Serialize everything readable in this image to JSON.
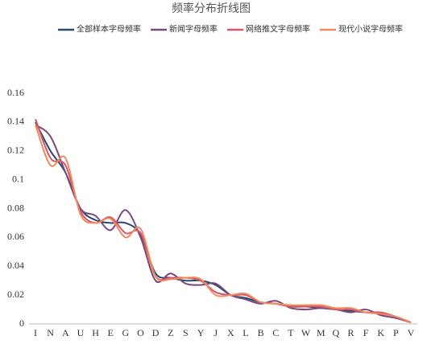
{
  "chart_data": {
    "type": "line",
    "title": "频率分布折线图",
    "categories": [
      "I",
      "N",
      "A",
      "U",
      "H",
      "E",
      "G",
      "O",
      "D",
      "Z",
      "S",
      "Y",
      "J",
      "X",
      "L",
      "B",
      "C",
      "T",
      "W",
      "M",
      "Q",
      "R",
      "F",
      "K",
      "P",
      "V"
    ],
    "series": [
      {
        "name": "全部样本字母频率",
        "color": "#264a6e",
        "values": [
          0.14,
          0.12,
          0.105,
          0.08,
          0.072,
          0.07,
          0.07,
          0.062,
          0.035,
          0.032,
          0.03,
          0.03,
          0.027,
          0.02,
          0.018,
          0.015,
          0.014,
          0.012,
          0.012,
          0.011,
          0.01,
          0.009,
          0.008,
          0.007,
          0.005,
          0.001
        ]
      },
      {
        "name": "新闻字母频率",
        "color": "#7b4a7b",
        "values": [
          0.138,
          0.13,
          0.105,
          0.08,
          0.075,
          0.065,
          0.079,
          0.06,
          0.03,
          0.035,
          0.028,
          0.027,
          0.028,
          0.02,
          0.017,
          0.014,
          0.016,
          0.011,
          0.01,
          0.011,
          0.01,
          0.008,
          0.01,
          0.006,
          0.004,
          0.001
        ]
      },
      {
        "name": "网络推文字母频率",
        "color": "#d4566a",
        "values": [
          0.142,
          0.115,
          0.11,
          0.078,
          0.07,
          0.074,
          0.063,
          0.063,
          0.033,
          0.032,
          0.032,
          0.03,
          0.022,
          0.02,
          0.02,
          0.015,
          0.014,
          0.012,
          0.012,
          0.012,
          0.01,
          0.01,
          0.008,
          0.008,
          0.005,
          0.001
        ]
      },
      {
        "name": "现代小说字母频率",
        "color": "#f08a5d",
        "values": [
          0.138,
          0.11,
          0.115,
          0.076,
          0.07,
          0.073,
          0.06,
          0.066,
          0.033,
          0.031,
          0.032,
          0.031,
          0.02,
          0.02,
          0.021,
          0.015,
          0.014,
          0.013,
          0.013,
          0.013,
          0.011,
          0.011,
          0.008,
          0.007,
          0.005,
          0.001
        ]
      }
    ],
    "ylim": [
      0,
      0.16
    ],
    "yticks": [
      0,
      0.02,
      0.04,
      0.06,
      0.08,
      0.1,
      0.12,
      0.14,
      0.16
    ],
    "grid": false
  }
}
